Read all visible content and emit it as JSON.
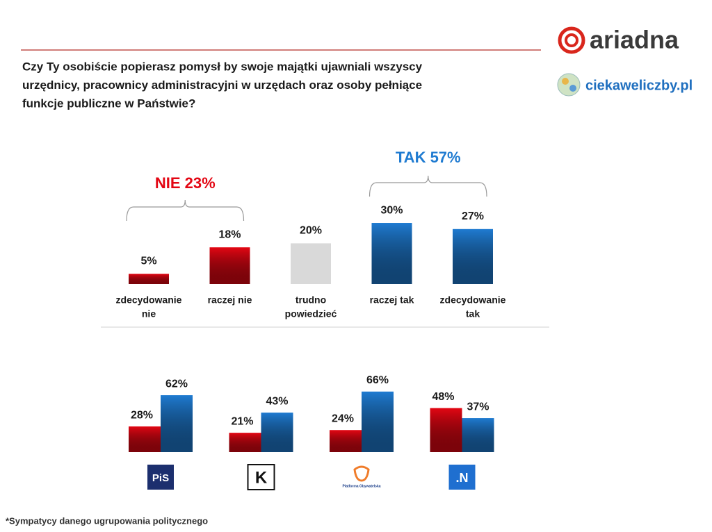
{
  "brand": {
    "name": "ariadna",
    "site": "ciekaweliczby.pl"
  },
  "footnote": "*Sympatycy danego ugrupowania politycznego",
  "chart_data": [
    {
      "type": "bar",
      "title": [
        "Czy Ty osobiście popierasz pomysł by swoje majątki ujawniali wszyscy",
        "urzędnicy, pracownicy administracyjni w urzędach oraz osoby pełniące",
        "funkcje publiczne w Państwie?"
      ],
      "categories": [
        [
          "zdecydowanie",
          "nie"
        ],
        [
          "raczej nie"
        ],
        [
          "trudno",
          "powiedzieć"
        ],
        [
          "raczej tak"
        ],
        [
          "zdecydowanie",
          "tak"
        ]
      ],
      "values": [
        5,
        18,
        20,
        30,
        27
      ],
      "value_labels": [
        "5%",
        "18%",
        "20%",
        "30%",
        "27%"
      ],
      "colors": [
        "#e30613",
        "#e30613",
        "#d9d9d9",
        "#1f7bd1",
        "#1f7bd1"
      ],
      "annotations": [
        {
          "text": "NIE 23%",
          "color": "#e30613"
        },
        {
          "text": "TAK 57%",
          "color": "#1f7bd1"
        }
      ]
    },
    {
      "type": "grouped_bar",
      "categories": [
        "PiS",
        "K",
        "Platforma Obywatelska",
        ".N"
      ],
      "series": [
        {
          "color": "#e30613",
          "values": [
            28,
            21,
            24,
            48
          ],
          "value_labels": [
            "28%",
            "21%",
            "24%",
            "48%"
          ]
        },
        {
          "color": "#1f7bd1",
          "values": [
            62,
            43,
            66,
            37
          ],
          "value_labels": [
            "62%",
            "43%",
            "66%",
            "37%"
          ]
        }
      ]
    }
  ]
}
